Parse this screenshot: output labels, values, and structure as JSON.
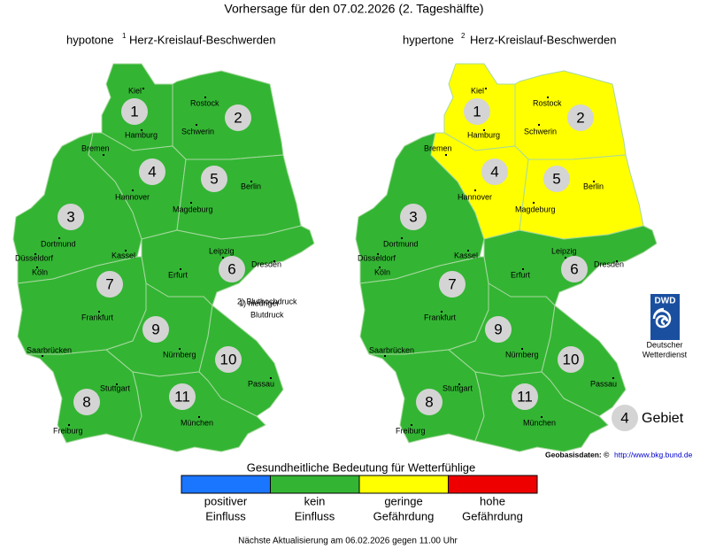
{
  "title": "Vorhersage für den 07.02.2026 (2. Tageshälfte)",
  "maps": [
    {
      "title": "hypotone",
      "footnote_mark": "1",
      "subtitle": "Herz-Kreislauf-Beschwerden",
      "footnote": [
        "1) niedriger",
        "Blutdruck"
      ],
      "regions": [
        {
          "number": 1,
          "color": "#33b533"
        },
        {
          "number": 2,
          "color": "#33b533"
        },
        {
          "number": 3,
          "color": "#33b533"
        },
        {
          "number": 4,
          "color": "#33b533"
        },
        {
          "number": 5,
          "color": "#33b533"
        },
        {
          "number": 6,
          "color": "#33b533"
        },
        {
          "number": 7,
          "color": "#33b533"
        },
        {
          "number": 8,
          "color": "#33b533"
        },
        {
          "number": 9,
          "color": "#33b533"
        },
        {
          "number": 10,
          "color": "#33b533"
        },
        {
          "number": 11,
          "color": "#33b533"
        }
      ]
    },
    {
      "title": "hypertone",
      "footnote_mark": "2",
      "subtitle": "Herz-Kreislauf-Beschwerden",
      "footnote": [
        "2) Bluthochdruck"
      ],
      "regions": [
        {
          "number": 1,
          "color": "#ffff00"
        },
        {
          "number": 2,
          "color": "#ffff00"
        },
        {
          "number": 3,
          "color": "#33b533"
        },
        {
          "number": 4,
          "color": "#ffff00"
        },
        {
          "number": 5,
          "color": "#ffff00"
        },
        {
          "number": 6,
          "color": "#33b533"
        },
        {
          "number": 7,
          "color": "#33b533"
        },
        {
          "number": 8,
          "color": "#33b533"
        },
        {
          "number": 9,
          "color": "#33b533"
        },
        {
          "number": 10,
          "color": "#33b533"
        },
        {
          "number": 11,
          "color": "#33b533"
        }
      ]
    }
  ],
  "cities": [
    "Kiel",
    "Rostock",
    "Hamburg",
    "Schwerin",
    "Bremen",
    "Hannover",
    "Berlin",
    "Magdeburg",
    "Dortmund",
    "Düsseldorf",
    "Köln",
    "Kassel",
    "Leipzig",
    "Dresden",
    "Erfurt",
    "Frankfurt",
    "Saarbrücken",
    "Nürnberg",
    "Passau",
    "Stuttgart",
    "München",
    "Freiburg"
  ],
  "logo": {
    "abbr": "DWD",
    "name": [
      "Deutscher",
      "Wetterdienst"
    ]
  },
  "region_key": {
    "number": 4,
    "label": "Gebiet"
  },
  "source": {
    "label": "Geobasisdaten: ©",
    "link": "http://www.bkg.bund.de"
  },
  "legend": {
    "title": "Gesundheitliche Bedeutung für Wetterfühlige",
    "items": [
      {
        "lines": [
          "positiver",
          "Einfluss"
        ],
        "color": "#1a75ff"
      },
      {
        "lines": [
          "kein",
          "Einfluss"
        ],
        "color": "#33b533"
      },
      {
        "lines": [
          "geringe",
          "Gefährdung"
        ],
        "color": "#ffff00"
      },
      {
        "lines": [
          "hohe",
          "Gefährdung"
        ],
        "color": "#ee0000"
      }
    ]
  },
  "footer": "Nächste Aktualisierung am 06.02.2026 gegen 11.00 Uhr"
}
